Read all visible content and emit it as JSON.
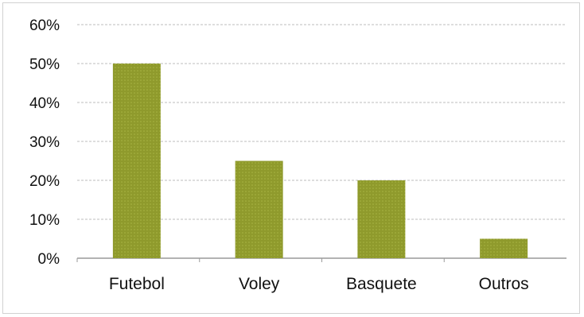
{
  "chart_data": {
    "type": "bar",
    "title": "",
    "xlabel": "",
    "ylabel": "",
    "categories": [
      "Futebol",
      "Voley",
      "Basquete",
      "Outros"
    ],
    "values": [
      50,
      25,
      20,
      5
    ],
    "ylim": [
      0,
      60
    ],
    "y_ticks": [
      "0%",
      "10%",
      "20%",
      "30%",
      "40%",
      "50%",
      "60%"
    ],
    "grid": true,
    "legend": "none",
    "colors": {
      "bar": "#8f9a2c",
      "bar_dots": "#a9b544",
      "grid": "#bdbdbd",
      "axis": "#9a9a9a"
    }
  }
}
